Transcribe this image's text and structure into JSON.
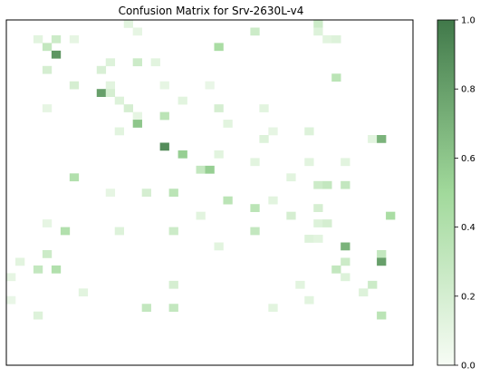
{
  "chart_data": {
    "type": "heatmap",
    "title": "Confusion Matrix for Srv-2630L-v4",
    "xlabel": "",
    "ylabel": "",
    "rows": 45,
    "cols": 45,
    "zlim": [
      0,
      1
    ],
    "colormap": {
      "low": "#f7fcf5",
      "mid": "#a1d99b",
      "high": "#41794a"
    },
    "colorbar": {
      "ticks": [
        0.0,
        0.2,
        0.4,
        0.6,
        0.8,
        1.0
      ],
      "labels": [
        "0.0",
        "0.2",
        "0.4",
        "0.6",
        "0.8",
        "1.0"
      ]
    },
    "cells": [
      [
        0,
        13,
        0.12
      ],
      [
        0,
        34,
        0.25
      ],
      [
        1,
        14,
        0.1
      ],
      [
        1,
        27,
        0.25
      ],
      [
        1,
        34,
        0.15
      ],
      [
        2,
        3,
        0.12
      ],
      [
        2,
        5,
        0.25
      ],
      [
        2,
        7,
        0.1
      ],
      [
        2,
        35,
        0.12
      ],
      [
        2,
        36,
        0.15
      ],
      [
        3,
        4,
        0.3
      ],
      [
        3,
        23,
        0.45
      ],
      [
        4,
        5,
        0.85
      ],
      [
        5,
        11,
        0.15
      ],
      [
        5,
        14,
        0.25
      ],
      [
        5,
        16,
        0.12
      ],
      [
        6,
        4,
        0.2
      ],
      [
        6,
        10,
        0.18
      ],
      [
        7,
        36,
        0.35
      ],
      [
        8,
        7,
        0.2
      ],
      [
        8,
        11,
        0.12
      ],
      [
        8,
        17,
        0.1
      ],
      [
        8,
        22,
        0.08
      ],
      [
        9,
        10,
        0.8
      ],
      [
        9,
        11,
        0.2
      ],
      [
        10,
        12,
        0.15
      ],
      [
        10,
        19,
        0.12
      ],
      [
        11,
        4,
        0.1
      ],
      [
        11,
        13,
        0.2
      ],
      [
        11,
        23,
        0.2
      ],
      [
        11,
        28,
        0.12
      ],
      [
        12,
        14,
        0.1
      ],
      [
        12,
        17,
        0.35
      ],
      [
        13,
        14,
        0.6
      ],
      [
        13,
        24,
        0.12
      ],
      [
        14,
        12,
        0.12
      ],
      [
        14,
        29,
        0.1
      ],
      [
        14,
        33,
        0.15
      ],
      [
        15,
        28,
        0.15
      ],
      [
        15,
        40,
        0.12
      ],
      [
        15,
        41,
        0.7
      ],
      [
        16,
        17,
        0.9
      ],
      [
        17,
        19,
        0.55
      ],
      [
        17,
        23,
        0.12
      ],
      [
        18,
        27,
        0.12
      ],
      [
        18,
        33,
        0.12
      ],
      [
        18,
        37,
        0.12
      ],
      [
        19,
        21,
        0.3
      ],
      [
        19,
        22,
        0.55
      ],
      [
        20,
        7,
        0.4
      ],
      [
        20,
        31,
        0.12
      ],
      [
        21,
        34,
        0.25
      ],
      [
        21,
        35,
        0.3
      ],
      [
        21,
        37,
        0.3
      ],
      [
        22,
        11,
        0.1
      ],
      [
        22,
        15,
        0.2
      ],
      [
        22,
        18,
        0.35
      ],
      [
        23,
        24,
        0.35
      ],
      [
        23,
        29,
        0.12
      ],
      [
        24,
        27,
        0.35
      ],
      [
        24,
        34,
        0.2
      ],
      [
        25,
        21,
        0.12
      ],
      [
        25,
        31,
        0.2
      ],
      [
        25,
        42,
        0.45
      ],
      [
        26,
        4,
        0.1
      ],
      [
        26,
        34,
        0.15
      ],
      [
        26,
        35,
        0.2
      ],
      [
        27,
        6,
        0.4
      ],
      [
        27,
        12,
        0.15
      ],
      [
        27,
        18,
        0.25
      ],
      [
        27,
        27,
        0.3
      ],
      [
        28,
        33,
        0.15
      ],
      [
        28,
        34,
        0.12
      ],
      [
        29,
        23,
        0.12
      ],
      [
        29,
        37,
        0.7
      ],
      [
        30,
        4,
        0.25
      ],
      [
        30,
        41,
        0.3
      ],
      [
        31,
        1,
        0.12
      ],
      [
        31,
        37,
        0.25
      ],
      [
        31,
        41,
        0.8
      ],
      [
        32,
        3,
        0.3
      ],
      [
        32,
        5,
        0.4
      ],
      [
        32,
        36,
        0.3
      ],
      [
        33,
        0,
        0.1
      ],
      [
        33,
        37,
        0.15
      ],
      [
        34,
        18,
        0.2
      ],
      [
        34,
        32,
        0.12
      ],
      [
        34,
        40,
        0.25
      ],
      [
        35,
        8,
        0.12
      ],
      [
        35,
        39,
        0.15
      ],
      [
        36,
        0,
        0.08
      ],
      [
        36,
        33,
        0.12
      ],
      [
        37,
        15,
        0.3
      ],
      [
        37,
        18,
        0.3
      ],
      [
        37,
        29,
        0.12
      ],
      [
        38,
        3,
        0.15
      ],
      [
        38,
        41,
        0.35
      ]
    ]
  }
}
